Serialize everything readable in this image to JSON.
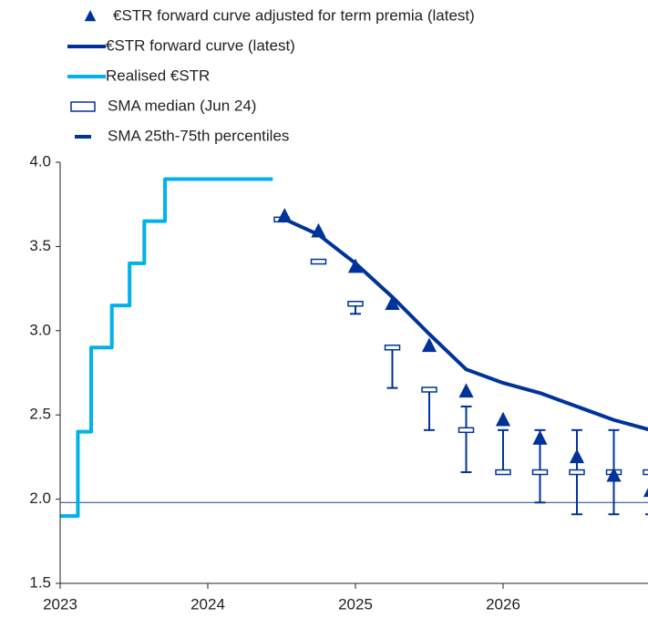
{
  "chart_data": {
    "type": "line",
    "xlim": [
      2023,
      2027
    ],
    "xticks": [
      2023,
      2024,
      2025,
      2026
    ],
    "ylim": [
      1.5,
      4.0
    ],
    "yticks": [
      {
        "value": 1.5,
        "label": "1.5"
      },
      {
        "value": 2.0,
        "label": "2.0"
      },
      {
        "value": 2.5,
        "label": "2.5"
      },
      {
        "value": 3.0,
        "label": "3.0"
      },
      {
        "value": 3.5,
        "label": "3.5"
      },
      {
        "value": 4.0,
        "label": "4.0"
      }
    ],
    "reference_line": {
      "value": 1.98,
      "color": "#2a5ca8"
    },
    "series": [
      {
        "name": "€STR forward curve adjusted for term premia (latest)",
        "style": "triangle",
        "color": "#003399",
        "x": [
          2024.52,
          2024.75,
          2025,
          2025.25,
          2025.5,
          2025.75,
          2026,
          2026.25,
          2026.5,
          2026.75,
          2027
        ],
        "values": [
          3.68,
          3.59,
          3.38,
          3.16,
          2.91,
          2.64,
          2.47,
          2.36,
          2.25,
          2.14,
          2.05
        ]
      },
      {
        "name": "€STR forward curve (latest)",
        "style": "line",
        "color": "#003399",
        "x": [
          2024.5,
          2024.75,
          2025,
          2025.25,
          2025.5,
          2025.75,
          2026,
          2026.25,
          2026.5,
          2026.75,
          2027
        ],
        "values": [
          3.67,
          3.57,
          3.4,
          3.2,
          2.98,
          2.77,
          2.69,
          2.63,
          2.55,
          2.47,
          2.41
        ]
      },
      {
        "name": "Realised €STR",
        "style": "line",
        "color": "#00b1ea",
        "x": [
          2023,
          2023.12,
          2023.12,
          2023.21,
          2023.21,
          2023.35,
          2023.35,
          2023.47,
          2023.47,
          2023.57,
          2023.57,
          2023.71,
          2023.71,
          2024.44
        ],
        "values": [
          1.9,
          1.9,
          2.4,
          2.4,
          2.9,
          2.9,
          3.15,
          3.15,
          3.4,
          3.4,
          3.65,
          3.65,
          3.9,
          3.9
        ]
      },
      {
        "name": "SMA median (Jun 24)",
        "style": "rect",
        "color": "#003399",
        "x": [
          2024.5,
          2024.75,
          2025,
          2025.25,
          2025.5,
          2025.75,
          2026,
          2026.25,
          2026.5,
          2026.75,
          2027
        ],
        "values": [
          3.66,
          3.41,
          3.16,
          2.9,
          2.65,
          2.41,
          2.16,
          2.16,
          2.16,
          2.16,
          2.16
        ]
      },
      {
        "name": "SMA 25th-75th percentiles",
        "style": "range",
        "color": "#003399",
        "x": [
          2025,
          2025.25,
          2025.5,
          2025.75,
          2026,
          2026.25,
          2026.5,
          2026.75,
          2027
        ],
        "low": [
          3.1,
          2.66,
          2.41,
          2.16,
          2.16,
          1.98,
          1.91,
          1.91,
          1.91
        ],
        "high": [
          3.16,
          2.9,
          2.65,
          2.55,
          2.41,
          2.41,
          2.41,
          2.41,
          2.16
        ]
      }
    ]
  }
}
